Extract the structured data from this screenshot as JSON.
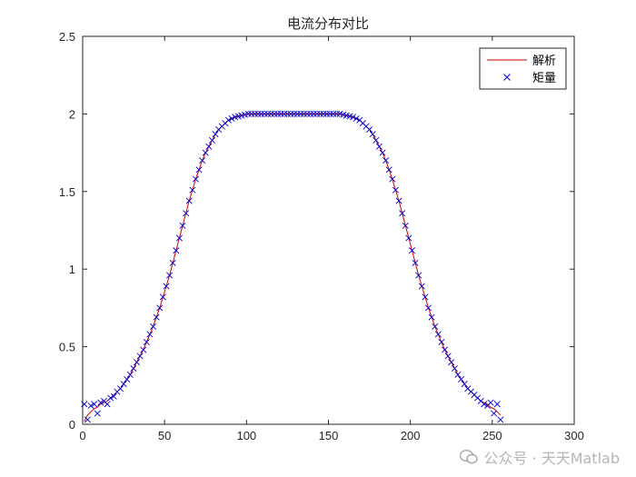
{
  "chart_data": {
    "type": "line",
    "title": "电流分布对比",
    "xlabel": "",
    "ylabel": "",
    "xlim": [
      0,
      300
    ],
    "ylim": [
      0,
      2.5
    ],
    "xticks": [
      0,
      50,
      100,
      150,
      200,
      250,
      300
    ],
    "yticks": [
      0,
      0.5,
      1,
      1.5,
      2,
      2.5
    ],
    "grid": false,
    "legend_position": "top-right",
    "series": [
      {
        "name": "解析",
        "style": "line",
        "color": "#cc0000",
        "x_start": 1,
        "x_end": 255,
        "x_step": 2,
        "values": [
          0.02,
          0.06,
          0.08,
          0.1,
          0.11,
          0.13,
          0.14,
          0.15,
          0.17,
          0.19,
          0.21,
          0.23,
          0.26,
          0.29,
          0.32,
          0.36,
          0.4,
          0.44,
          0.48,
          0.53,
          0.58,
          0.63,
          0.69,
          0.75,
          0.82,
          0.89,
          0.96,
          1.04,
          1.12,
          1.2,
          1.28,
          1.36,
          1.44,
          1.51,
          1.58,
          1.64,
          1.7,
          1.75,
          1.79,
          1.83,
          1.87,
          1.9,
          1.92,
          1.94,
          1.96,
          1.97,
          1.98,
          1.985,
          1.99,
          1.995,
          2.0,
          2.0,
          2.0,
          2.0,
          2.0,
          2.0,
          2.0,
          2.0,
          2.0,
          2.0,
          2.0,
          2.0,
          2.0,
          2.0,
          2.0,
          2.0,
          2.0,
          2.0,
          2.0,
          2.0,
          2.0,
          2.0,
          2.0,
          2.0,
          2.0,
          2.0,
          2.0,
          2.0,
          2.0,
          1.995,
          1.99,
          1.985,
          1.98,
          1.97,
          1.96,
          1.94,
          1.92,
          1.9,
          1.87,
          1.83,
          1.79,
          1.75,
          1.7,
          1.64,
          1.58,
          1.51,
          1.44,
          1.36,
          1.28,
          1.2,
          1.12,
          1.04,
          0.96,
          0.89,
          0.82,
          0.75,
          0.69,
          0.63,
          0.58,
          0.53,
          0.48,
          0.44,
          0.4,
          0.36,
          0.32,
          0.29,
          0.26,
          0.23,
          0.21,
          0.19,
          0.17,
          0.15,
          0.14,
          0.13,
          0.11,
          0.1,
          0.08,
          0.06
        ]
      },
      {
        "name": "矩量",
        "style": "marker-x",
        "color": "#0000cc",
        "x_start": 1,
        "x_end": 255,
        "x_step": 2,
        "values": [
          0.13,
          0.03,
          0.12,
          0.13,
          0.07,
          0.14,
          0.15,
          0.13,
          0.17,
          0.18,
          0.21,
          0.23,
          0.26,
          0.29,
          0.32,
          0.36,
          0.4,
          0.44,
          0.48,
          0.53,
          0.58,
          0.63,
          0.69,
          0.75,
          0.82,
          0.89,
          0.96,
          1.04,
          1.12,
          1.2,
          1.28,
          1.36,
          1.44,
          1.51,
          1.58,
          1.64,
          1.7,
          1.75,
          1.79,
          1.83,
          1.87,
          1.9,
          1.92,
          1.94,
          1.96,
          1.97,
          1.98,
          1.985,
          1.99,
          1.995,
          2.0,
          2.0,
          2.0,
          2.0,
          2.0,
          2.0,
          2.0,
          2.0,
          2.0,
          2.0,
          2.0,
          2.0,
          2.0,
          2.0,
          2.0,
          2.0,
          2.0,
          2.0,
          2.0,
          2.0,
          2.0,
          2.0,
          2.0,
          2.0,
          2.0,
          2.0,
          2.0,
          2.0,
          2.0,
          1.995,
          1.99,
          1.985,
          1.98,
          1.97,
          1.96,
          1.94,
          1.92,
          1.9,
          1.87,
          1.83,
          1.79,
          1.75,
          1.7,
          1.64,
          1.58,
          1.51,
          1.44,
          1.36,
          1.28,
          1.2,
          1.12,
          1.04,
          0.96,
          0.89,
          0.82,
          0.75,
          0.69,
          0.63,
          0.58,
          0.53,
          0.48,
          0.44,
          0.4,
          0.36,
          0.32,
          0.29,
          0.26,
          0.23,
          0.21,
          0.19,
          0.17,
          0.15,
          0.13,
          0.12,
          0.14,
          0.07,
          0.13,
          0.03
        ]
      }
    ]
  },
  "watermark": {
    "text": "公众号 · 天天Matlab",
    "icon": "wechat-icon"
  }
}
